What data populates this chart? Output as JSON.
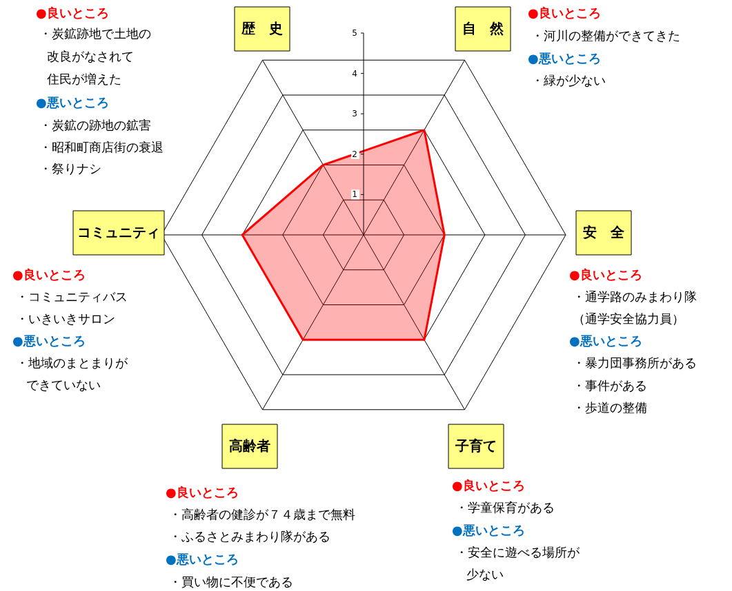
{
  "chart_data": {
    "type": "radar",
    "categories": [
      "自　然",
      "安　全",
      "子育て",
      "高齢者",
      "コミュニティ",
      "歴　史"
    ],
    "series": [
      {
        "color": "#ff0000",
        "values": [
          3,
          2,
          3,
          3,
          3,
          2
        ]
      }
    ],
    "ylim": [
      0,
      5
    ],
    "yticks": [
      1,
      2,
      3,
      4,
      5
    ],
    "grid": true,
    "annotations": [
      "●良いところ",
      "・炭鉱跡地で土地の",
      "改良がなされて",
      "住民が増えた",
      "●悪いところ",
      "・炭鉱の跡地の鉱害",
      "・昭和町商店街の衰退",
      "・祭りナシ",
      "●良いところ",
      "・河川の整備ができてきた",
      "●悪いところ",
      "・緑が少ない",
      "●良いところ",
      "・通学路のみまわり隊",
      "（通学安全協力員）",
      "●悪いところ",
      "・暴力団事務所がある",
      "・事件がある",
      "・歩道の整備",
      "●良いところ",
      "・コミュニティバス",
      "・いきいきサロン",
      "●悪いところ",
      "・地域のまとまりが",
      "できていない",
      "●良いところ",
      "・高齢者の健診が７４歳まで無料",
      "・ふるさとみまわり隊がある",
      "●悪いところ",
      "・買い物に不便である",
      "●良いところ",
      "・学童保育がある",
      "●悪いところ",
      "・安全に遊べる場所が",
      "少ない"
    ]
  }
}
